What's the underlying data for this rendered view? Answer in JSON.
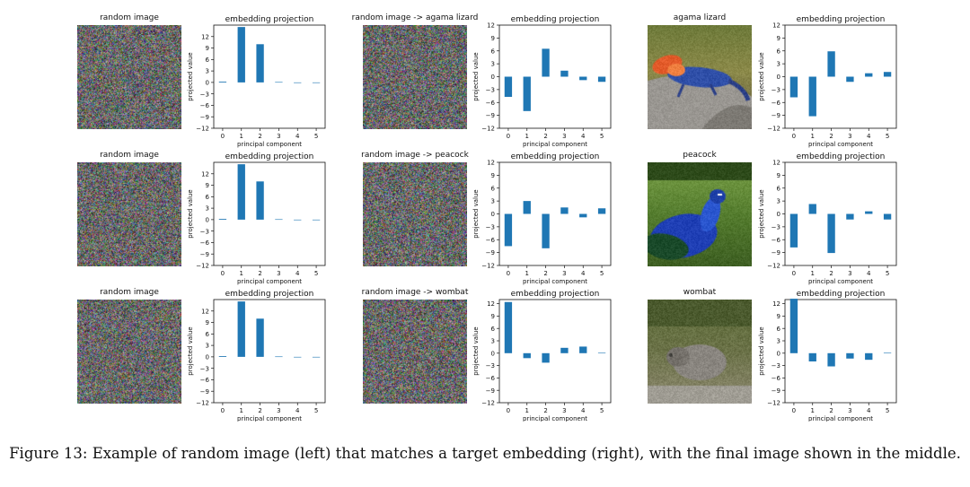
{
  "figure": {
    "caption": "Figure 13: Example of random image (left) that matches a target embedding (right), with the final image shown in the middle.",
    "axis_labels": {
      "x": "principal component",
      "y": "projected value"
    },
    "rows": [
      {
        "images": [
          {
            "title": "random image",
            "kind": "noise",
            "seed": 11
          },
          {
            "title": "random image -> agama lizard",
            "kind": "noise",
            "seed": 23
          },
          {
            "title": "agama lizard",
            "kind": "photo",
            "scene": "lizard"
          }
        ]
      },
      {
        "images": [
          {
            "title": "random image",
            "kind": "noise",
            "seed": 37
          },
          {
            "title": "random image -> peacock",
            "kind": "noise",
            "seed": 41
          },
          {
            "title": "peacock",
            "kind": "photo",
            "scene": "peacock"
          }
        ]
      },
      {
        "images": [
          {
            "title": "random image",
            "kind": "noise",
            "seed": 53
          },
          {
            "title": "random image -> wombat",
            "kind": "noise",
            "seed": 67
          },
          {
            "title": "wombat",
            "kind": "photo",
            "scene": "wombat"
          }
        ]
      }
    ]
  },
  "chart_data": [
    {
      "type": "bar",
      "title": "embedding projection",
      "xlabel": "principal component",
      "ylabel": "projected value",
      "categories": [
        0,
        1,
        2,
        3,
        4,
        5
      ],
      "values": [
        0.2,
        14.5,
        10,
        0.1,
        0,
        0
      ],
      "ylim": [
        -12,
        15
      ],
      "yticks": [
        12,
        9,
        6,
        3,
        0,
        -3,
        -6,
        -9,
        -12
      ],
      "color": "#1f77b4"
    },
    {
      "type": "bar",
      "title": "embedding projection",
      "xlabel": "principal component",
      "ylabel": "projected value",
      "categories": [
        0,
        1,
        2,
        3,
        4,
        5
      ],
      "values": [
        -4.7,
        -8,
        6.5,
        1.4,
        -0.8,
        -1.2
      ],
      "ylim": [
        -12,
        12
      ],
      "yticks": [
        12,
        9,
        6,
        3,
        0,
        -3,
        -6,
        -9,
        -12
      ],
      "color": "#1f77b4"
    },
    {
      "type": "bar",
      "title": "embedding projection",
      "xlabel": "principal component",
      "ylabel": "projected value",
      "categories": [
        0,
        1,
        2,
        3,
        4,
        5
      ],
      "values": [
        -4.8,
        -9.2,
        5.9,
        -1.2,
        0.8,
        1.1
      ],
      "ylim": [
        -12,
        12
      ],
      "yticks": [
        12,
        9,
        6,
        3,
        0,
        -3,
        -6,
        -9,
        -12
      ],
      "color": "#1f77b4"
    },
    {
      "type": "bar",
      "title": "embedding projection",
      "xlabel": "principal component",
      "ylabel": "projected value",
      "categories": [
        0,
        1,
        2,
        3,
        4,
        5
      ],
      "values": [
        0.2,
        14.5,
        10,
        0.1,
        0,
        0
      ],
      "ylim": [
        -12,
        15
      ],
      "yticks": [
        12,
        9,
        6,
        3,
        0,
        -3,
        -6,
        -9,
        -12
      ],
      "color": "#1f77b4"
    },
    {
      "type": "bar",
      "title": "embedding projection",
      "xlabel": "principal component",
      "ylabel": "projected value",
      "categories": [
        0,
        1,
        2,
        3,
        4,
        5
      ],
      "values": [
        -7.5,
        3,
        -8,
        1.5,
        -0.8,
        1.3
      ],
      "ylim": [
        -12,
        12
      ],
      "yticks": [
        12,
        9,
        6,
        3,
        0,
        -3,
        -6,
        -9,
        -12
      ],
      "color": "#1f77b4"
    },
    {
      "type": "bar",
      "title": "embedding projection",
      "xlabel": "principal component",
      "ylabel": "projected value",
      "categories": [
        0,
        1,
        2,
        3,
        4,
        5
      ],
      "values": [
        -7.8,
        2.3,
        -9.1,
        -1.3,
        0.6,
        -1.3
      ],
      "ylim": [
        -12,
        12
      ],
      "yticks": [
        12,
        9,
        6,
        3,
        0,
        -3,
        -6,
        -9,
        -12
      ],
      "color": "#1f77b4"
    },
    {
      "type": "bar",
      "title": "embedding projection",
      "xlabel": "principal component",
      "ylabel": "projected value",
      "categories": [
        0,
        1,
        2,
        3,
        4,
        5
      ],
      "values": [
        0.2,
        14.5,
        10,
        0.1,
        0,
        0
      ],
      "ylim": [
        -12,
        15
      ],
      "yticks": [
        12,
        9,
        6,
        3,
        0,
        -3,
        -6,
        -9,
        -12
      ],
      "color": "#1f77b4"
    },
    {
      "type": "bar",
      "title": "embedding projection",
      "xlabel": "principal component",
      "ylabel": "projected value",
      "categories": [
        0,
        1,
        2,
        3,
        4,
        5
      ],
      "values": [
        12.4,
        -1.2,
        -2.3,
        1.3,
        1.6,
        0.1
      ],
      "ylim": [
        -12,
        13
      ],
      "yticks": [
        12,
        9,
        6,
        3,
        0,
        -3,
        -6,
        -9,
        -12
      ],
      "color": "#1f77b4"
    },
    {
      "type": "bar",
      "title": "embedding projection",
      "xlabel": "principal component",
      "ylabel": "projected value",
      "categories": [
        0,
        1,
        2,
        3,
        4,
        5
      ],
      "values": [
        13.2,
        -2,
        -3.2,
        -1.3,
        -1.6,
        0.1
      ],
      "ylim": [
        -12,
        13
      ],
      "yticks": [
        12,
        9,
        6,
        3,
        0,
        -3,
        -6,
        -9,
        -12
      ],
      "color": "#1f77b4"
    }
  ]
}
